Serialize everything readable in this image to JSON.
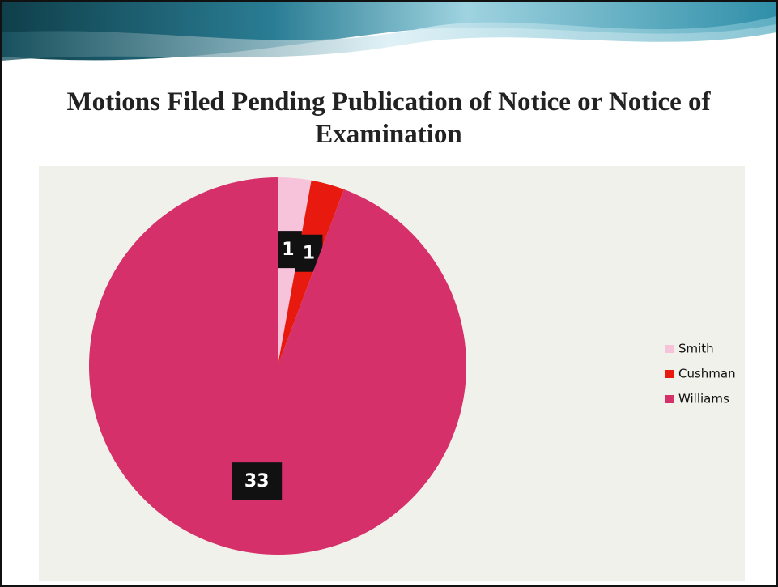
{
  "chart_data": {
    "type": "pie",
    "title": "Motions Filed Pending Publication of Notice or Notice of Examination",
    "categories": [
      "Smith",
      "Cushman",
      "Williams"
    ],
    "values": [
      1,
      1,
      33
    ],
    "colors": [
      "#f6c3da",
      "#e8190f",
      "#d5306a"
    ],
    "legend": "right"
  }
}
